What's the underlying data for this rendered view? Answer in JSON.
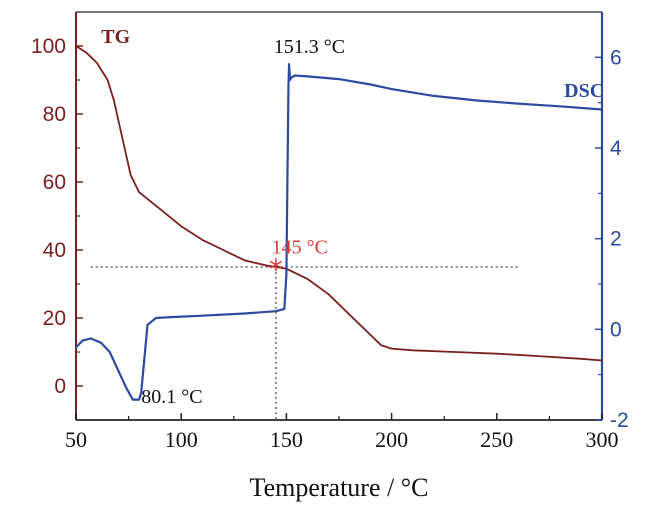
{
  "chart_data": {
    "type": "line",
    "xlabel": "Temperature / °C",
    "x_ticks": [
      "50",
      "100",
      "150",
      "200",
      "250",
      "300"
    ],
    "xlim": [
      50,
      300
    ],
    "ylim_left": [
      -10,
      110
    ],
    "ylim_right": [
      -2,
      7
    ],
    "y_ticks_left": [
      "0",
      "20",
      "40",
      "60",
      "80",
      "100"
    ],
    "y_ticks_right": [
      "-2",
      "0",
      "2",
      "4",
      "6"
    ],
    "colors": {
      "tg": "#7a1f1f",
      "dsc": "#2b4aa0",
      "marker": "#d93a3a",
      "axis_left": "#7a1f1f",
      "axis_right": "#2b4aa0"
    },
    "series": [
      {
        "name": "TG",
        "axis": "left",
        "x": [
          50,
          55,
          60,
          65,
          68,
          72,
          76,
          80,
          90,
          100,
          110,
          120,
          130,
          140,
          145,
          150,
          155,
          160,
          170,
          180,
          190,
          195,
          200,
          210,
          230,
          250,
          270,
          290,
          300
        ],
        "y": [
          100,
          98,
          95,
          90,
          84,
          73,
          62,
          57,
          52,
          47,
          43,
          40,
          37,
          35.5,
          35,
          34.5,
          33,
          31.5,
          27,
          21,
          15,
          12,
          11,
          10.5,
          10,
          9.5,
          8.8,
          8,
          7.5
        ]
      },
      {
        "name": "DSC",
        "axis": "right",
        "x": [
          50,
          53,
          57,
          62,
          66,
          70,
          74,
          77,
          80,
          81,
          82,
          84,
          88,
          95,
          110,
          130,
          145,
          149,
          150,
          150.5,
          151,
          151.3,
          151.7,
          152.3,
          154,
          160,
          175,
          190,
          200,
          220,
          240,
          260,
          280,
          300
        ],
        "y": [
          -0.4,
          -0.25,
          -0.2,
          -0.3,
          -0.5,
          -0.9,
          -1.3,
          -1.55,
          -1.55,
          -1.4,
          -0.9,
          0.1,
          0.25,
          0.27,
          0.3,
          0.35,
          0.4,
          0.45,
          1.2,
          3.5,
          5.4,
          5.85,
          5.5,
          5.55,
          5.6,
          5.58,
          5.52,
          5.4,
          5.3,
          5.15,
          5.05,
          4.98,
          4.92,
          4.85
        ]
      }
    ],
    "annotations": [
      {
        "name": "tg-label",
        "text": "TG",
        "x": 62,
        "y_left": 103
      },
      {
        "name": "dsc-label",
        "text": "DSC",
        "x": 282,
        "y_left": 87
      },
      {
        "name": "peak-label",
        "text": "151.3 °C",
        "x": 144,
        "y_left": 100
      },
      {
        "name": "dip-label",
        "text": "80.1 °C",
        "x": 81,
        "y_left": -3
      },
      {
        "name": "onset-label",
        "text": "145 °C",
        "x": 143,
        "y_left": 41
      }
    ],
    "guide_lines": {
      "horizontal_y": 35,
      "horizontal_x_start": 57,
      "horizontal_x_end": 260,
      "vertical_x": 145,
      "vertical_y_top": 35
    },
    "marker": {
      "x": 145,
      "y": 35,
      "symbol": "*"
    }
  }
}
